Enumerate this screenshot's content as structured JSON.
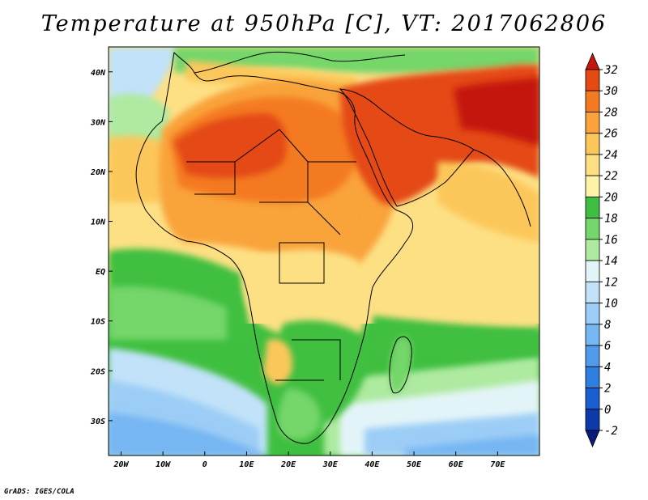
{
  "title": "Temperature at 950hPa [C], VT: 2017062806",
  "credit": "GrADS: IGES/COLA",
  "map": {
    "lon_range": [
      -23,
      80
    ],
    "lat_range": [
      -37,
      45
    ],
    "lon_ticks": [
      {
        "value": -20,
        "label": "20W"
      },
      {
        "value": -10,
        "label": "10W"
      },
      {
        "value": 0,
        "label": "0"
      },
      {
        "value": 10,
        "label": "10E"
      },
      {
        "value": 20,
        "label": "20E"
      },
      {
        "value": 30,
        "label": "30E"
      },
      {
        "value": 40,
        "label": "40E"
      },
      {
        "value": 50,
        "label": "50E"
      },
      {
        "value": 60,
        "label": "60E"
      },
      {
        "value": 70,
        "label": "70E"
      }
    ],
    "lat_ticks": [
      {
        "value": 40,
        "label": "40N"
      },
      {
        "value": 30,
        "label": "30N"
      },
      {
        "value": 20,
        "label": "20N"
      },
      {
        "value": 10,
        "label": "10N"
      },
      {
        "value": 0,
        "label": "EQ"
      },
      {
        "value": -10,
        "label": "10S"
      },
      {
        "value": -20,
        "label": "20S"
      },
      {
        "value": -30,
        "label": "30S"
      }
    ]
  },
  "colorbar": {
    "levels": [
      "-2",
      "0",
      "2",
      "4",
      "6",
      "8",
      "10",
      "12",
      "14",
      "16",
      "18",
      "20",
      "22",
      "24",
      "26",
      "28",
      "30",
      "32"
    ],
    "colors": [
      "#0a1a7a",
      "#0c3aa8",
      "#1a5fd0",
      "#2e7fe0",
      "#4f9cec",
      "#76b6f2",
      "#9ccdf6",
      "#c1e2f9",
      "#e3f4f8",
      "#aeeaa0",
      "#74d66b",
      "#3fbf3f",
      "#fff3a8",
      "#fde084",
      "#fcc75a",
      "#f9a33a",
      "#f47a21",
      "#e44a12",
      "#c4160a"
    ]
  }
}
